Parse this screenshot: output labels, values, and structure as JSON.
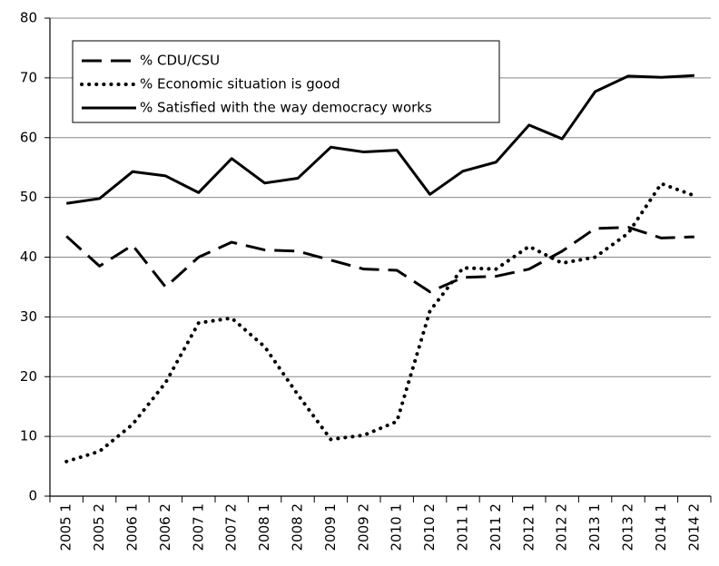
{
  "chart_data": {
    "type": "line",
    "categories": [
      "2005 1",
      "2005 2",
      "2006 1",
      "2006 2",
      "2007 1",
      "2007 2",
      "2008 1",
      "2008 2",
      "2009 1",
      "2009 2",
      "2010 1",
      "2010 2",
      "2011 1",
      "2011 2",
      "2012 1",
      "2012 2",
      "2013 1",
      "2013 2",
      "2014 1",
      "2014 2"
    ],
    "series": [
      {
        "name": "% CDU/CSU",
        "color": "#000000",
        "line_style": "dashed",
        "values": [
          43.5,
          38.5,
          42,
          35,
          40,
          42.5,
          41.2,
          41,
          39.5,
          38,
          37.8,
          34.2,
          36.6,
          36.8,
          38,
          41,
          44.8,
          45,
          43.2,
          43.4
        ]
      },
      {
        "name": "% Economic situation is good",
        "color": "#000000",
        "line_style": "dotted",
        "values": [
          5.8,
          7.5,
          12,
          19,
          29,
          29.8,
          25,
          17,
          9.5,
          10.2,
          12.5,
          31,
          38.2,
          38,
          41.8,
          39,
          40,
          44,
          52.3,
          50.3
        ]
      },
      {
        "name": "% Satisfied with the way democracy works",
        "color": "#000000",
        "line_style": "solid",
        "values": [
          49,
          49.8,
          54.3,
          53.6,
          50.8,
          56.5,
          52.4,
          53.2,
          58.4,
          57.6,
          57.9,
          50.5,
          54.4,
          55.9,
          62.1,
          59.8,
          67.7,
          70.3,
          70.1,
          70.4
        ]
      }
    ],
    "ylim": [
      0,
      80
    ],
    "yticks": [
      0,
      10,
      20,
      30,
      40,
      50,
      60,
      70,
      80
    ],
    "grid": true,
    "legend": "upper left"
  }
}
